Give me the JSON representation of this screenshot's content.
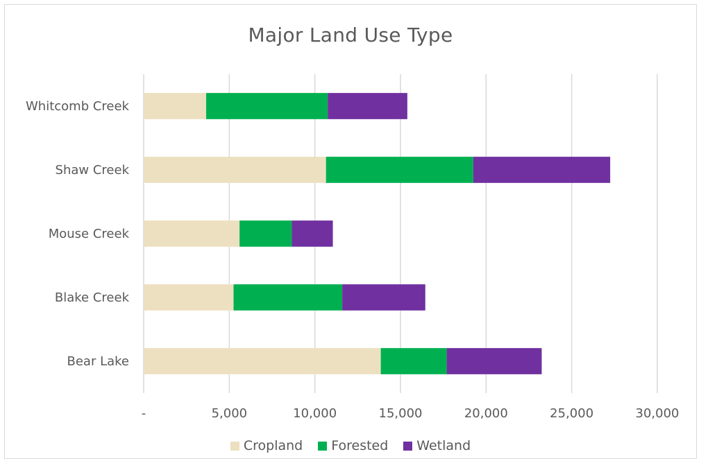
{
  "chart_data": {
    "type": "bar",
    "orientation": "horizontal",
    "stacked": true,
    "title": "Major Land Use Type",
    "xlabel": "",
    "ylabel": "",
    "categories": [
      "Bear Lake",
      "Blake Creek",
      "Mouse Creek",
      "Shaw Creek",
      "Whitcomb Creek"
    ],
    "series": [
      {
        "name": "Cropland",
        "color": "#ede0c0",
        "values": [
          13850,
          5250,
          5600,
          10650,
          3650
        ]
      },
      {
        "name": "Forested",
        "color": "#00b050",
        "values": [
          3850,
          6350,
          3050,
          8600,
          7100
        ]
      },
      {
        "name": "Wetland",
        "color": "#7030a0",
        "values": [
          5550,
          4850,
          2400,
          8000,
          4650
        ]
      }
    ],
    "xlim": [
      0,
      30000
    ],
    "xticks": [
      0,
      5000,
      10000,
      15000,
      20000,
      25000,
      30000
    ],
    "xtick_labels": [
      "-",
      "5,000",
      "10,000",
      "15,000",
      "20,000",
      "25,000",
      "30,000"
    ],
    "grid": "vertical",
    "legend": "bottom"
  }
}
